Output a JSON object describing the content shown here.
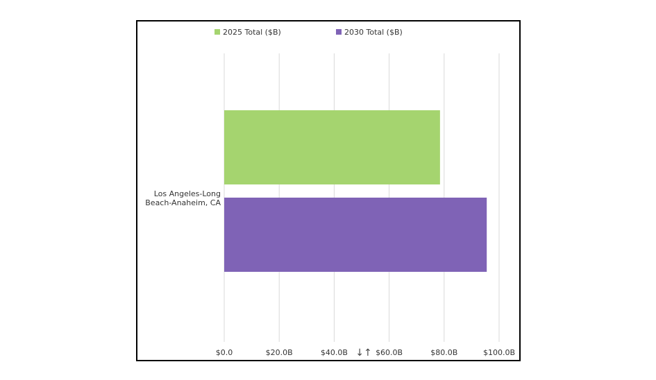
{
  "chart_data": {
    "type": "bar",
    "orientation": "horizontal",
    "categories": [
      "Los Angeles-Long Beach-Anaheim, CA"
    ],
    "category_lines": [
      "Los Angeles-Long",
      "Beach-Anaheim, CA"
    ],
    "series": [
      {
        "name": "2025 Total ($B)",
        "values": [
          78.5
        ],
        "color": "#a5d46f"
      },
      {
        "name": "2030 Total ($B)",
        "values": [
          95.5
        ],
        "color": "#7f63b6"
      }
    ],
    "xlim": [
      0,
      100
    ],
    "x_ticks": [
      0,
      20,
      40,
      60,
      80,
      100
    ],
    "x_tick_labels": [
      "$0.0",
      "$20.0B",
      "$40.0B",
      "$60.0B",
      "$80.0B",
      "$100.0B"
    ],
    "grid": true,
    "legend_position": "top-left",
    "title": "",
    "xlabel": "",
    "ylabel": ""
  },
  "sort_icon": "sort-arrows-icon"
}
